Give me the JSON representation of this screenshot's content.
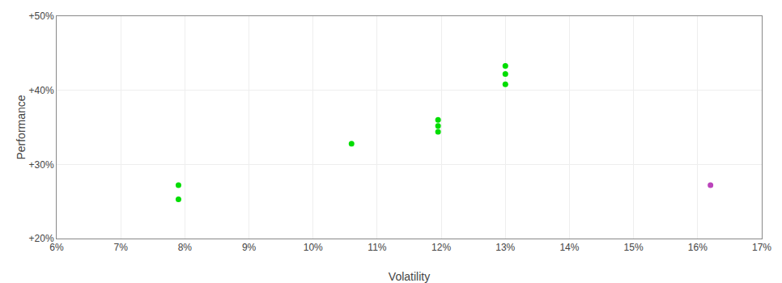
{
  "chart_data": {
    "type": "scatter",
    "xlabel": "Volatility",
    "ylabel": "Performance",
    "xlim": [
      0.06,
      0.17
    ],
    "ylim": [
      0.2,
      0.5
    ],
    "xticks": [
      {
        "value": 0.06,
        "label": "6%"
      },
      {
        "value": 0.07,
        "label": "7%"
      },
      {
        "value": 0.08,
        "label": "8%"
      },
      {
        "value": 0.09,
        "label": "9%"
      },
      {
        "value": 0.1,
        "label": "10%"
      },
      {
        "value": 0.11,
        "label": "11%"
      },
      {
        "value": 0.12,
        "label": "12%"
      },
      {
        "value": 0.13,
        "label": "13%"
      },
      {
        "value": 0.14,
        "label": "14%"
      },
      {
        "value": 0.15,
        "label": "15%"
      },
      {
        "value": 0.16,
        "label": "16%"
      },
      {
        "value": 0.17,
        "label": "17%"
      }
    ],
    "yticks": [
      {
        "value": 0.2,
        "label": "+20%"
      },
      {
        "value": 0.3,
        "label": "+30%"
      },
      {
        "value": 0.4,
        "label": "+40%"
      },
      {
        "value": 0.5,
        "label": "+50%"
      }
    ],
    "grid": true,
    "series": [
      {
        "color": "#00dd00",
        "x": [
          0.079,
          0.079,
          0.106,
          0.1195,
          0.1195,
          0.1195,
          0.13,
          0.13,
          0.13
        ],
        "values": [
          0.272,
          0.253,
          0.328,
          0.36,
          0.352,
          0.344,
          0.433,
          0.422,
          0.408
        ]
      },
      {
        "color": "#bb44bb",
        "x": [
          0.162
        ],
        "values": [
          0.272
        ]
      }
    ]
  }
}
